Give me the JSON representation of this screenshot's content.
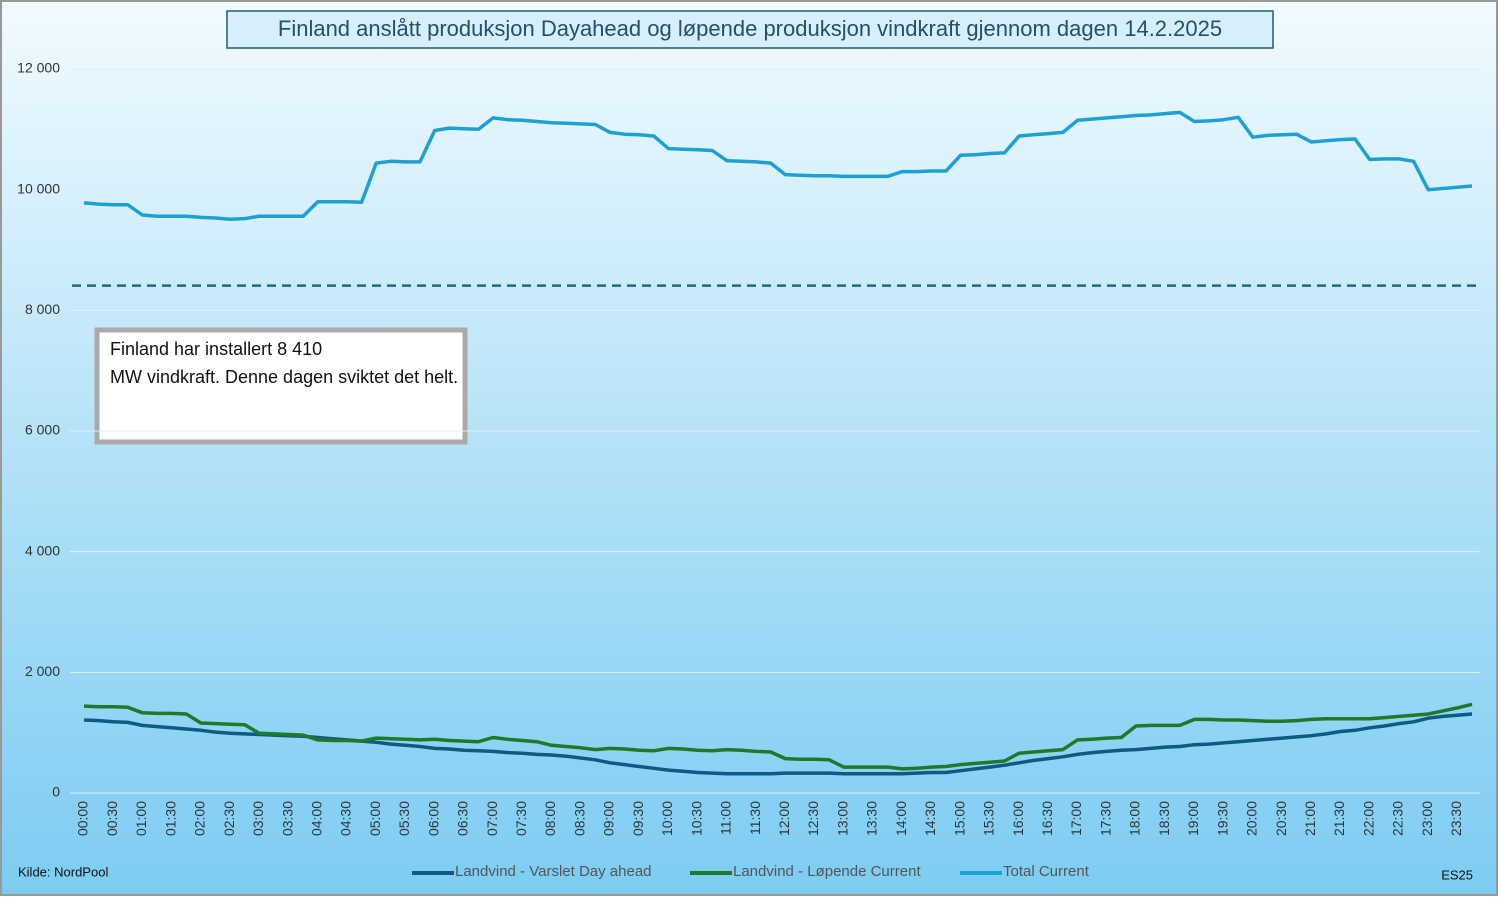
{
  "chart_data": {
    "type": "line",
    "title": "Finland anslått produksjon Dayahead og løpende produksjon vindkraft gjennom dagen 14.2.2025",
    "annotation": "Finland har installert 8 410 MW vindkraft. Denne dagen sviktet det helt.",
    "source": "Kilde: NordPool",
    "credit": "ES25",
    "categories": [
      "00:00",
      null,
      "00:30",
      null,
      "01:00",
      null,
      "01:30",
      null,
      "02:00",
      null,
      "02:30",
      null,
      "03:00",
      null,
      "03:30",
      null,
      "04:00",
      null,
      "04:30",
      null,
      "05:00",
      null,
      "05:30",
      null,
      "06:00",
      null,
      "06:30",
      null,
      "07:00",
      null,
      "07:30",
      null,
      "08:00",
      null,
      "08:30",
      null,
      "09:00",
      null,
      "09:30",
      null,
      "10:00",
      null,
      "10:30",
      null,
      "11:00",
      null,
      "11:30",
      null,
      "12:00",
      null,
      "12:30",
      null,
      "13:00",
      null,
      "13:30",
      null,
      "14:00",
      null,
      "14:30",
      null,
      "15:00",
      null,
      "15:30",
      null,
      "16:00",
      null,
      "16:30",
      null,
      "17:00",
      null,
      "17:30",
      null,
      "18:00",
      null,
      "18:30",
      null,
      "19:00",
      null,
      "19:30",
      null,
      "20:00",
      null,
      "20:30",
      null,
      "21:00",
      null,
      "21:30",
      null,
      "22:00",
      null,
      "22:30",
      null,
      "23:00",
      null,
      "23:30",
      null
    ],
    "series": [
      {
        "name": "Landvind - Varslet Day ahead",
        "color": "#0f5a84",
        "values": [
          1210,
          1200,
          1180,
          1170,
          1120,
          1100,
          1080,
          1060,
          1040,
          1010,
          990,
          980,
          970,
          960,
          950,
          940,
          920,
          900,
          880,
          860,
          840,
          810,
          790,
          770,
          740,
          730,
          710,
          700,
          690,
          670,
          660,
          640,
          630,
          610,
          580,
          550,
          500,
          470,
          440,
          410,
          380,
          360,
          340,
          330,
          320,
          320,
          320,
          320,
          330,
          330,
          330,
          330,
          320,
          320,
          320,
          320,
          320,
          330,
          340,
          340,
          370,
          400,
          430,
          460,
          500,
          540,
          570,
          600,
          640,
          670,
          690,
          710,
          720,
          740,
          760,
          770,
          800,
          810,
          830,
          850,
          870,
          890,
          910,
          930,
          950,
          980,
          1020,
          1040,
          1080,
          1110,
          1150,
          1180,
          1240,
          1270,
          1290,
          1310
        ]
      },
      {
        "name": "Landvind - Løpende Current",
        "color": "#1e7a2a",
        "values": [
          1440,
          1430,
          1430,
          1420,
          1330,
          1320,
          1320,
          1310,
          1160,
          1150,
          1140,
          1130,
          990,
          980,
          970,
          960,
          880,
          870,
          870,
          860,
          910,
          900,
          890,
          880,
          890,
          870,
          860,
          850,
          920,
          890,
          870,
          850,
          790,
          770,
          750,
          720,
          740,
          730,
          710,
          700,
          740,
          730,
          710,
          700,
          720,
          710,
          690,
          680,
          570,
          560,
          560,
          550,
          430,
          430,
          430,
          430,
          400,
          410,
          430,
          440,
          470,
          490,
          510,
          530,
          660,
          680,
          700,
          720,
          880,
          890,
          910,
          920,
          1110,
          1120,
          1120,
          1120,
          1220,
          1220,
          1210,
          1210,
          1200,
          1190,
          1190,
          1200,
          1220,
          1230,
          1230,
          1230,
          1230,
          1250,
          1270,
          1290,
          1310,
          1360,
          1410,
          1470
        ]
      },
      {
        "name": "Total Current",
        "color": "#1fa0d2",
        "values": [
          9780,
          9760,
          9750,
          9750,
          9580,
          9560,
          9560,
          9560,
          9540,
          9530,
          9510,
          9520,
          9560,
          9560,
          9560,
          9560,
          9800,
          9800,
          9800,
          9790,
          10440,
          10470,
          10460,
          10460,
          10980,
          11020,
          11010,
          11000,
          11190,
          11160,
          11150,
          11130,
          11110,
          11100,
          11090,
          11080,
          10950,
          10920,
          10910,
          10890,
          10680,
          10670,
          10660,
          10650,
          10480,
          10470,
          10460,
          10440,
          10250,
          10240,
          10230,
          10230,
          10220,
          10220,
          10220,
          10220,
          10300,
          10300,
          10310,
          10310,
          10570,
          10580,
          10600,
          10610,
          10890,
          10910,
          10930,
          10950,
          11150,
          11170,
          11190,
          11210,
          11230,
          11240,
          11260,
          11280,
          11130,
          11140,
          11160,
          11200,
          10870,
          10900,
          10910,
          10920,
          10790,
          10810,
          10830,
          10840,
          10500,
          10510,
          10510,
          10470,
          10000,
          10020,
          10040,
          10060
        ]
      }
    ],
    "reference_lines": [
      {
        "value": 8410,
        "color": "#1c6b85",
        "style": "dashed"
      }
    ],
    "ylim": [
      0,
      12000
    ],
    "yticks": [
      0,
      {
        "value": 2000,
        "label": "2 000"
      },
      {
        "value": 4000,
        "label": "4 000"
      },
      {
        "value": 6000,
        "label": "6 000"
      },
      {
        "value": 8000,
        "label": "8 000"
      },
      {
        "value": 10000,
        "label": "10 000"
      },
      {
        "value": 12000,
        "label": "12 000"
      }
    ],
    "grid": true,
    "legend": "bottom"
  }
}
